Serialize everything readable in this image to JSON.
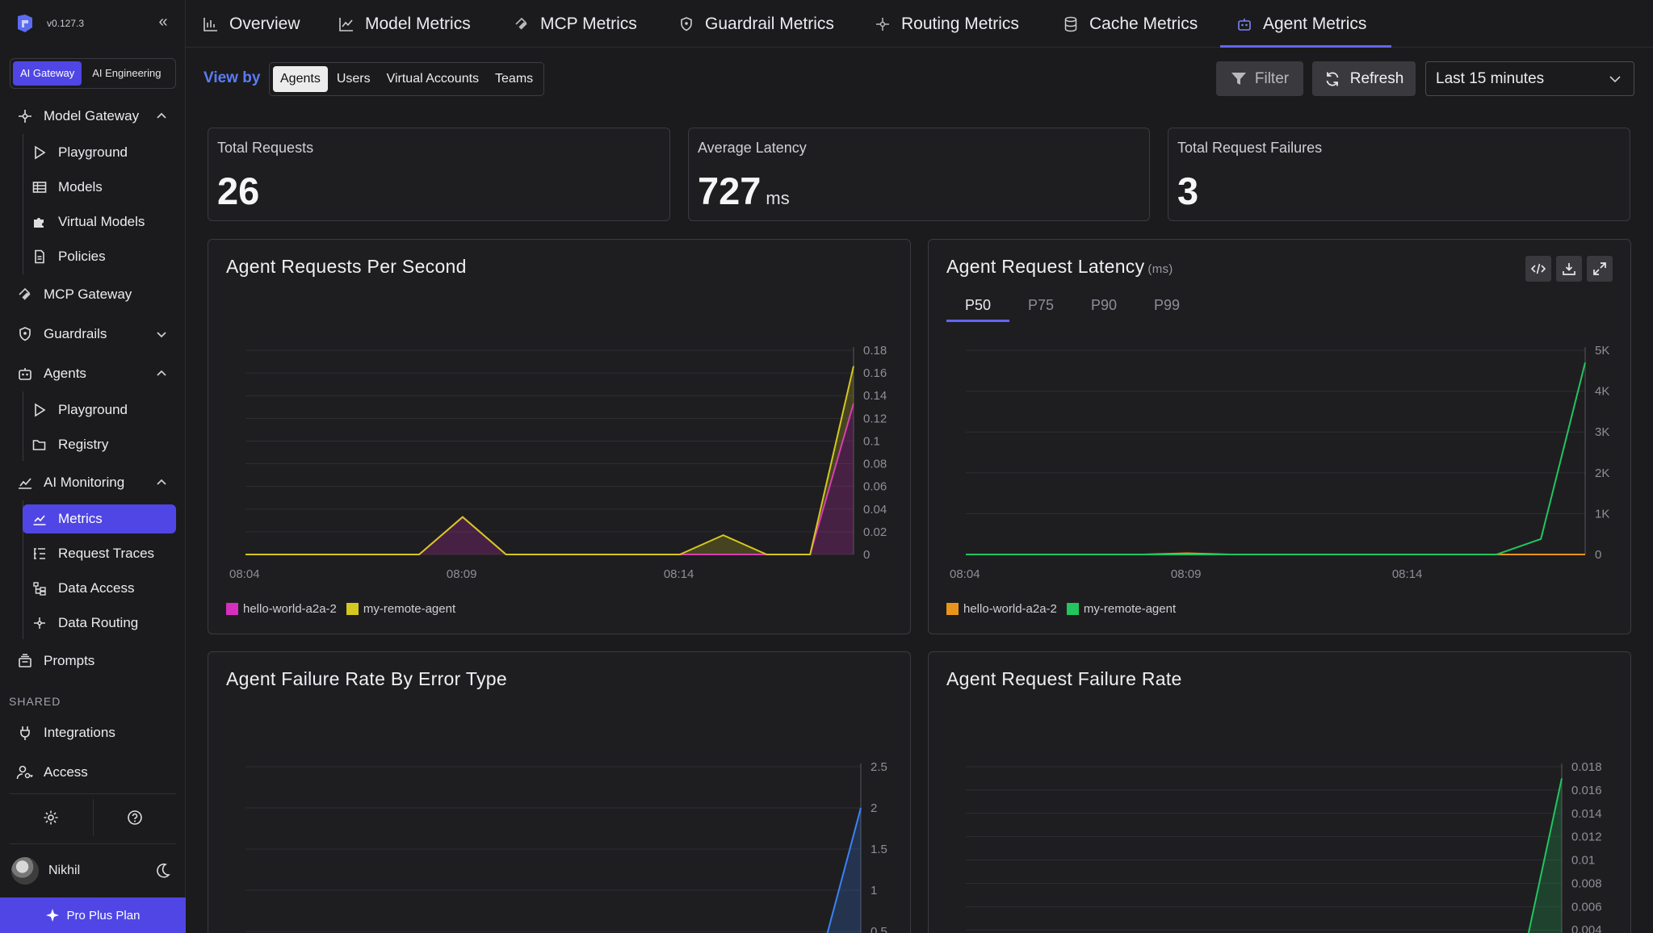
{
  "app": {
    "version": "v0.127.3",
    "workspace_tabs": [
      "AI Gateway",
      "AI Engineering"
    ],
    "user_name": "Nikhil",
    "plan_label": "Pro Plus Plan",
    "shared_label": "SHARED"
  },
  "sidebar": {
    "model_gateway": "Model Gateway",
    "mg_playground": "Playground",
    "models": "Models",
    "virtual_models": "Virtual Models",
    "policies": "Policies",
    "mcp_gateway": "MCP Gateway",
    "guardrails": "Guardrails",
    "agents": "Agents",
    "ag_playground": "Playground",
    "registry": "Registry",
    "ai_monitoring": "AI Monitoring",
    "metrics": "Metrics",
    "request_traces": "Request Traces",
    "data_access": "Data Access",
    "data_routing": "Data Routing",
    "prompts": "Prompts",
    "integrations": "Integrations",
    "access": "Access"
  },
  "tabs": [
    "Overview",
    "Model Metrics",
    "MCP Metrics",
    "Guardrail Metrics",
    "Routing Metrics",
    "Cache Metrics",
    "Agent Metrics"
  ],
  "toolbar": {
    "view_by_label": "View by",
    "view_by_options": [
      "Agents",
      "Users",
      "Virtual Accounts",
      "Teams"
    ],
    "filter_label": "Filter",
    "refresh_label": "Refresh",
    "time_range": "Last 15 minutes"
  },
  "stats": {
    "total_requests_label": "Total Requests",
    "total_requests_value": "26",
    "avg_latency_label": "Average Latency",
    "avg_latency_value": "727",
    "avg_latency_unit": "ms",
    "failures_label": "Total Request Failures",
    "failures_value": "3"
  },
  "percentile_tabs": [
    "P50",
    "P75",
    "P90",
    "P99"
  ],
  "colors": {
    "accent": "#4f46e5",
    "magenta": "#d62fc0",
    "yellow": "#d4c71f",
    "orange": "#e8961b",
    "green": "#22c55e",
    "blue": "#3b82f6"
  },
  "chart_data": [
    {
      "type": "area",
      "title": "Agent Requests Per Second",
      "x_ticks": [
        "08:04",
        "08:09",
        "08:14"
      ],
      "y_ticks": [
        "0",
        "0.02",
        "0.04",
        "0.06",
        "0.08",
        "0.1",
        "0.12",
        "0.14",
        "0.16",
        "0.18"
      ],
      "ylim": [
        0,
        0.18
      ],
      "x_points": 15,
      "series": [
        {
          "name": "hello-world-a2a-2",
          "color": "#d62fc0",
          "values": [
            0,
            0,
            0,
            0,
            0,
            0.033,
            0,
            0,
            0,
            0,
            0,
            0,
            0,
            0,
            0.133
          ]
        },
        {
          "name": "my-remote-agent",
          "color": "#d4c71f",
          "values": [
            0,
            0,
            0,
            0,
            0,
            0,
            0,
            0,
            0,
            0,
            0,
            0.017,
            0,
            0,
            0.033
          ]
        }
      ],
      "stacked": true,
      "legend": "bottom-left"
    },
    {
      "type": "line",
      "title": "Agent Request Latency",
      "unit": "(ms)",
      "x_ticks": [
        "08:04",
        "08:09",
        "08:14"
      ],
      "y_ticks": [
        "0",
        "1K",
        "2K",
        "3K",
        "4K",
        "5K"
      ],
      "ylim": [
        0,
        5000
      ],
      "x_points": 15,
      "series": [
        {
          "name": "hello-world-a2a-2",
          "color": "#e8961b",
          "values": [
            0,
            0,
            0,
            0,
            0,
            30,
            0,
            0,
            0,
            0,
            0,
            0,
            0,
            0,
            0
          ]
        },
        {
          "name": "my-remote-agent",
          "color": "#22c55e",
          "values": [
            0,
            0,
            0,
            0,
            0,
            0,
            0,
            0,
            0,
            0,
            0,
            0,
            0,
            380,
            4700
          ]
        }
      ],
      "legend": "bottom-left"
    },
    {
      "type": "area",
      "title": "Agent Failure Rate By Error Type",
      "y_ticks": [
        "0.5",
        "1",
        "1.5",
        "2",
        "2.5"
      ],
      "ylim": [
        0,
        2.5
      ],
      "series": [
        {
          "name": "",
          "color": "#3b82f6",
          "values": [
            0,
            0,
            0,
            0,
            0,
            0,
            0,
            0,
            0,
            0,
            0,
            0,
            0,
            0,
            2
          ]
        }
      ]
    },
    {
      "type": "area",
      "title": "Agent Request Failure Rate",
      "y_ticks": [
        "0.004",
        "0.006",
        "0.008",
        "0.01",
        "0.012",
        "0.014",
        "0.016",
        "0.018"
      ],
      "ylim": [
        0,
        0.018
      ],
      "series": [
        {
          "name": "",
          "color": "#22c55e",
          "values": [
            0,
            0,
            0,
            0,
            0,
            0,
            0,
            0,
            0,
            0,
            0,
            0,
            0,
            0,
            0.017
          ]
        }
      ]
    }
  ]
}
